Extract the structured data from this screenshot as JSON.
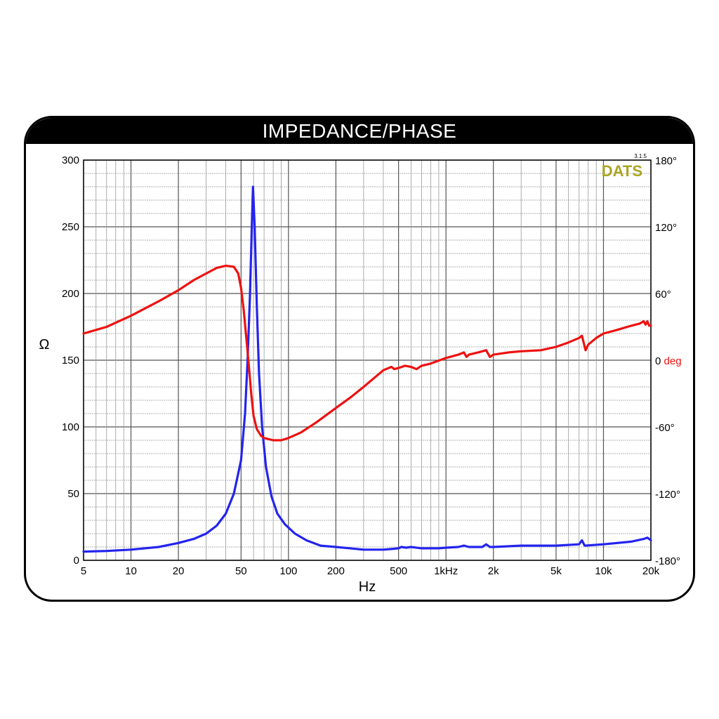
{
  "title": "IMPEDANCE/PHASE",
  "brand": {
    "name": "DATS",
    "version": "3.1.5",
    "color": "#aaa524"
  },
  "chart_data": {
    "type": "line",
    "title": "IMPEDANCE/PHASE",
    "xlabel": "Hz",
    "ylabel": "Ω",
    "y2label": "deg",
    "x_scale": "log",
    "xlim": [
      5,
      20000
    ],
    "ylim": [
      0,
      300
    ],
    "y2lim": [
      -180,
      180
    ],
    "grid": true,
    "x_ticks": [
      {
        "v": 5,
        "label": "5"
      },
      {
        "v": 10,
        "label": "10"
      },
      {
        "v": 20,
        "label": "20"
      },
      {
        "v": 50,
        "label": "50"
      },
      {
        "v": 100,
        "label": "100"
      },
      {
        "v": 200,
        "label": "200"
      },
      {
        "v": 500,
        "label": "500"
      },
      {
        "v": 1000,
        "label": "1kHz"
      },
      {
        "v": 2000,
        "label": "2k"
      },
      {
        "v": 5000,
        "label": "5k"
      },
      {
        "v": 10000,
        "label": "10k"
      },
      {
        "v": 20000,
        "label": "20k"
      }
    ],
    "y_ticks": [
      {
        "v": 0,
        "label": "0"
      },
      {
        "v": 50,
        "label": "50"
      },
      {
        "v": 100,
        "label": "100"
      },
      {
        "v": 150,
        "label": "150"
      },
      {
        "v": 200,
        "label": "200"
      },
      {
        "v": 250,
        "label": "250"
      },
      {
        "v": 300,
        "label": "300"
      }
    ],
    "y2_ticks": [
      {
        "v": 180,
        "label": "180°"
      },
      {
        "v": 120,
        "label": "120°"
      },
      {
        "v": 60,
        "label": "60°"
      },
      {
        "v": 0,
        "label": "0",
        "unit": "deg"
      },
      {
        "v": -60,
        "label": "-60°"
      },
      {
        "v": -120,
        "label": "-120°"
      },
      {
        "v": -180,
        "label": "-180°"
      }
    ],
    "series": [
      {
        "key": "impedance",
        "axis": "left",
        "color": "#2424ee",
        "points": [
          [
            5,
            6.5
          ],
          [
            7,
            7
          ],
          [
            10,
            8
          ],
          [
            15,
            10
          ],
          [
            20,
            13
          ],
          [
            25,
            16
          ],
          [
            30,
            20
          ],
          [
            35,
            26
          ],
          [
            40,
            35
          ],
          [
            45,
            50
          ],
          [
            50,
            75
          ],
          [
            53,
            110
          ],
          [
            55,
            150
          ],
          [
            57,
            200
          ],
          [
            58.5,
            250
          ],
          [
            59.5,
            280
          ],
          [
            61,
            250
          ],
          [
            63,
            190
          ],
          [
            65,
            140
          ],
          [
            68,
            100
          ],
          [
            72,
            70
          ],
          [
            78,
            48
          ],
          [
            85,
            35
          ],
          [
            95,
            27
          ],
          [
            110,
            20
          ],
          [
            130,
            15
          ],
          [
            160,
            11
          ],
          [
            200,
            10
          ],
          [
            300,
            8
          ],
          [
            400,
            8
          ],
          [
            450,
            8.5
          ],
          [
            500,
            9
          ],
          [
            520,
            10
          ],
          [
            560,
            9.5
          ],
          [
            600,
            10
          ],
          [
            700,
            9
          ],
          [
            900,
            9
          ],
          [
            1000,
            9.5
          ],
          [
            1200,
            10
          ],
          [
            1300,
            11
          ],
          [
            1400,
            10
          ],
          [
            1700,
            10
          ],
          [
            1800,
            12
          ],
          [
            1900,
            10
          ],
          [
            2000,
            10
          ],
          [
            3000,
            11
          ],
          [
            5000,
            11
          ],
          [
            7000,
            12
          ],
          [
            7300,
            15
          ],
          [
            7600,
            11
          ],
          [
            10000,
            12
          ],
          [
            15000,
            14
          ],
          [
            18000,
            16
          ],
          [
            19000,
            17
          ],
          [
            20000,
            15
          ]
        ]
      },
      {
        "key": "phase",
        "axis": "right",
        "color": "#ee1111",
        "points": [
          [
            5,
            24
          ],
          [
            7,
            30
          ],
          [
            10,
            40
          ],
          [
            15,
            53
          ],
          [
            20,
            63
          ],
          [
            25,
            72
          ],
          [
            30,
            78
          ],
          [
            35,
            83
          ],
          [
            40,
            85
          ],
          [
            45,
            84
          ],
          [
            48,
            78
          ],
          [
            50,
            65
          ],
          [
            52,
            45
          ],
          [
            54,
            20
          ],
          [
            56,
            -5
          ],
          [
            58,
            -30
          ],
          [
            60,
            -50
          ],
          [
            63,
            -62
          ],
          [
            67,
            -68
          ],
          [
            70,
            -70
          ],
          [
            80,
            -72
          ],
          [
            90,
            -72
          ],
          [
            100,
            -70
          ],
          [
            120,
            -65
          ],
          [
            150,
            -56
          ],
          [
            200,
            -43
          ],
          [
            250,
            -33
          ],
          [
            300,
            -24
          ],
          [
            350,
            -16
          ],
          [
            400,
            -9
          ],
          [
            450,
            -6
          ],
          [
            470,
            -8
          ],
          [
            500,
            -7
          ],
          [
            550,
            -5
          ],
          [
            600,
            -6
          ],
          [
            650,
            -8
          ],
          [
            700,
            -5
          ],
          [
            800,
            -3
          ],
          [
            1000,
            2
          ],
          [
            1200,
            5
          ],
          [
            1300,
            7
          ],
          [
            1350,
            3
          ],
          [
            1400,
            5
          ],
          [
            1600,
            7
          ],
          [
            1800,
            9
          ],
          [
            1900,
            3
          ],
          [
            2000,
            5
          ],
          [
            2500,
            7
          ],
          [
            3000,
            8
          ],
          [
            4000,
            9
          ],
          [
            5000,
            12
          ],
          [
            6000,
            16
          ],
          [
            7000,
            20
          ],
          [
            7300,
            22
          ],
          [
            7700,
            9
          ],
          [
            8000,
            14
          ],
          [
            9000,
            20
          ],
          [
            10000,
            24
          ],
          [
            12000,
            27
          ],
          [
            15000,
            31
          ],
          [
            17000,
            33
          ],
          [
            18000,
            35
          ],
          [
            18500,
            32
          ],
          [
            19000,
            35
          ],
          [
            19500,
            31
          ],
          [
            20000,
            31
          ]
        ]
      }
    ]
  }
}
